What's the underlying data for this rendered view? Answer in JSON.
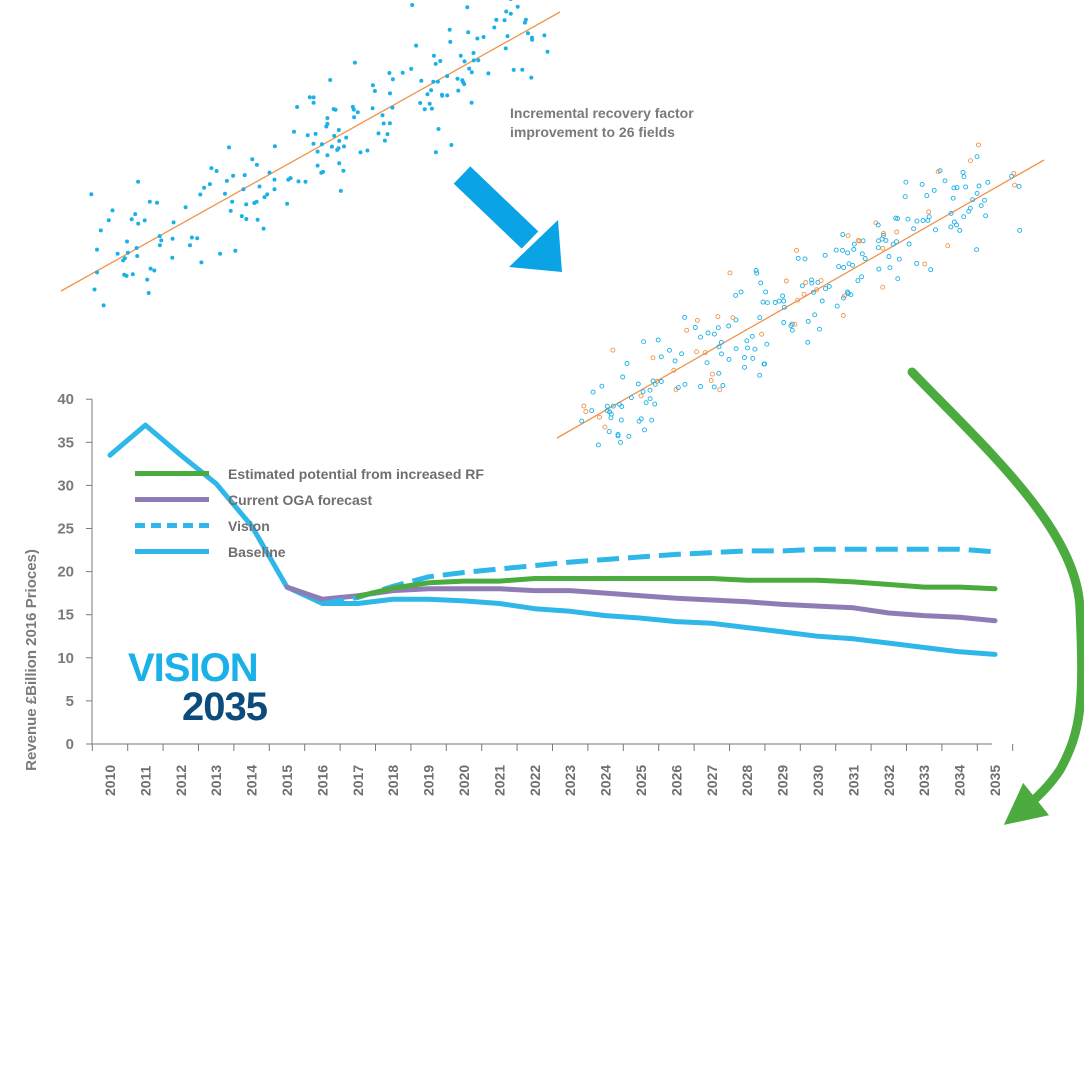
{
  "annotation": {
    "line1": "Incremental recovery factor",
    "line2": "improvement to 26 fields"
  },
  "logo": {
    "word": "VISION",
    "year": "2035"
  },
  "colors": {
    "estimated": "#4bab3f",
    "ogaForecast": "#8f7cb5",
    "vision": "#2fb7ea",
    "baseline": "#2fb7ea",
    "scatterDots": "#1ab0e8",
    "scatterOrange": "#f0944c",
    "arrowBlue": "#0aa4e6",
    "arrowGreen": "#4bab3f",
    "axisText": "#7a7a7a"
  },
  "icons": [
    "diagonal-down-right-arrow",
    "curved-down-left-arrow"
  ],
  "chart_data": {
    "type": "line",
    "title": "",
    "xlabel": "",
    "ylabel": "Revenue £Billion 2016 Prioces)",
    "ylim": [
      0,
      40
    ],
    "yticks": [
      0,
      5,
      10,
      15,
      20,
      25,
      30,
      35,
      40
    ],
    "legend_position": "top-left",
    "categories": [
      "2010",
      "2011",
      "2012",
      "2013",
      "2014",
      "2015",
      "2016",
      "2017",
      "2018",
      "2019",
      "2020",
      "2021",
      "2022",
      "2023",
      "2024",
      "2025",
      "2026",
      "2027",
      "2028",
      "2029",
      "2030",
      "2031",
      "2032",
      "2033",
      "2034",
      "2035"
    ],
    "series": [
      {
        "name": "Estimated potential from increased RF",
        "style": "solid",
        "color": "#4bab3f",
        "values": [
          null,
          null,
          null,
          null,
          null,
          null,
          null,
          17.1,
          18.1,
          18.7,
          18.9,
          18.9,
          19.2,
          19.2,
          19.2,
          19.2,
          19.2,
          19.2,
          19.0,
          19.0,
          19.0,
          18.8,
          18.5,
          18.2,
          18.2,
          18.0
        ]
      },
      {
        "name": "Current OGA forecast",
        "style": "solid",
        "color": "#8f7cb5",
        "values": [
          null,
          null,
          null,
          null,
          null,
          18.2,
          16.8,
          17.2,
          17.8,
          18.0,
          18.0,
          18.0,
          17.8,
          17.8,
          17.5,
          17.2,
          16.9,
          16.7,
          16.5,
          16.2,
          16.0,
          15.8,
          15.2,
          14.9,
          14.7,
          14.3
        ]
      },
      {
        "name": "Vision",
        "style": "dashed",
        "color": "#2fb7ea",
        "values": [
          null,
          null,
          null,
          null,
          null,
          null,
          16.3,
          17.0,
          18.3,
          19.4,
          19.9,
          20.3,
          20.7,
          21.1,
          21.4,
          21.7,
          22.0,
          22.2,
          22.4,
          22.4,
          22.6,
          22.6,
          22.6,
          22.6,
          22.6,
          22.3
        ]
      },
      {
        "name": "Baseline",
        "style": "solid",
        "color": "#2fb7ea",
        "values": [
          33.5,
          37.0,
          33.5,
          30.2,
          25.3,
          18.2,
          16.3,
          16.3,
          16.8,
          16.8,
          16.6,
          16.3,
          15.7,
          15.4,
          14.9,
          14.6,
          14.2,
          14.0,
          13.5,
          13.0,
          12.5,
          12.2,
          11.7,
          11.2,
          10.7,
          10.4
        ]
      }
    ]
  }
}
